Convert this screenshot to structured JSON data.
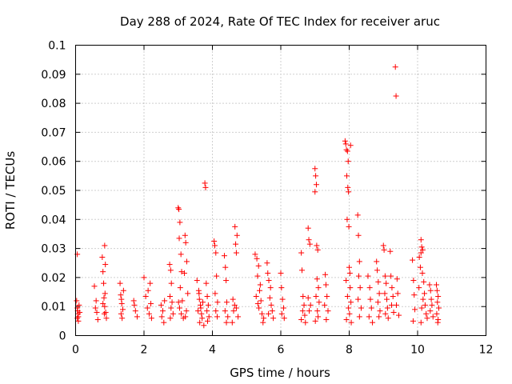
{
  "chart_data": {
    "type": "scatter",
    "title": "Day 288 of 2024, Rate Of TEC Index for receiver aruc",
    "xlabel": "GPS time / hours",
    "ylabel": "ROTI / TECUs",
    "xlim": [
      0,
      12
    ],
    "ylim": [
      0,
      0.1
    ],
    "xticks": [
      0,
      2,
      4,
      6,
      8,
      10,
      12
    ],
    "xtick_labels": [
      "0",
      "2",
      "4",
      "6",
      "8",
      "10",
      "12"
    ],
    "yticks": [
      0,
      0.01,
      0.02,
      0.03,
      0.04,
      0.05,
      0.06,
      0.07,
      0.08,
      0.09,
      0.1
    ],
    "ytick_labels": [
      "0",
      "0.01",
      "0.02",
      "0.03",
      "0.04",
      "0.05",
      "0.06",
      "0.07",
      "0.08",
      "0.09",
      "0.1"
    ],
    "grid": true,
    "marker": "+",
    "color": "#ff0000",
    "series": [
      {
        "name": "ROTI",
        "points": [
          [
            0.05,
            0.028
          ],
          [
            0.05,
            0.0095
          ],
          [
            0.06,
            0.0085
          ],
          [
            0.07,
            0.0075
          ],
          [
            0.05,
            0.006
          ],
          [
            0.08,
            0.005
          ],
          [
            0.1,
            0.0105
          ],
          [
            0.03,
            0.012
          ],
          [
            0.08,
            0.0065
          ],
          [
            0.12,
            0.008
          ],
          [
            0.55,
            0.017
          ],
          [
            0.6,
            0.012
          ],
          [
            0.62,
            0.008
          ],
          [
            0.65,
            0.0055
          ],
          [
            0.58,
            0.0095
          ],
          [
            0.78,
            0.027
          ],
          [
            0.8,
            0.022
          ],
          [
            0.82,
            0.018
          ],
          [
            0.85,
            0.031
          ],
          [
            0.87,
            0.0245
          ],
          [
            0.83,
            0.013
          ],
          [
            0.85,
            0.01
          ],
          [
            0.88,
            0.008
          ],
          [
            0.9,
            0.006
          ],
          [
            0.8,
            0.011
          ],
          [
            0.84,
            0.0075
          ],
          [
            0.86,
            0.0145
          ],
          [
            1.3,
            0.018
          ],
          [
            1.32,
            0.014
          ],
          [
            1.35,
            0.011
          ],
          [
            1.38,
            0.009
          ],
          [
            1.33,
            0.0075
          ],
          [
            1.36,
            0.006
          ],
          [
            1.4,
            0.0155
          ],
          [
            1.34,
            0.0125
          ],
          [
            1.7,
            0.012
          ],
          [
            1.75,
            0.0085
          ],
          [
            1.8,
            0.0065
          ],
          [
            1.72,
            0.0105
          ],
          [
            2.0,
            0.02
          ],
          [
            2.05,
            0.0135
          ],
          [
            2.1,
            0.0095
          ],
          [
            2.15,
            0.0075
          ],
          [
            2.18,
            0.018
          ],
          [
            2.2,
            0.011
          ],
          [
            2.22,
            0.006
          ],
          [
            2.12,
            0.0155
          ],
          [
            2.5,
            0.0105
          ],
          [
            2.55,
            0.0085
          ],
          [
            2.52,
            0.0065
          ],
          [
            2.58,
            0.0045
          ],
          [
            2.6,
            0.012
          ],
          [
            2.75,
            0.0245
          ],
          [
            2.78,
            0.0225
          ],
          [
            2.8,
            0.018
          ],
          [
            2.76,
            0.0135
          ],
          [
            2.82,
            0.0115
          ],
          [
            2.79,
            0.0095
          ],
          [
            2.85,
            0.0075
          ],
          [
            2.77,
            0.006
          ],
          [
            3.0,
            0.044
          ],
          [
            3.02,
            0.0435
          ],
          [
            3.05,
            0.039
          ],
          [
            3.03,
            0.0335
          ],
          [
            3.08,
            0.028
          ],
          [
            3.1,
            0.022
          ],
          [
            3.06,
            0.0165
          ],
          [
            3.12,
            0.012
          ],
          [
            3.04,
            0.0095
          ],
          [
            3.09,
            0.0075
          ],
          [
            3.15,
            0.006
          ],
          [
            3.01,
            0.0115
          ],
          [
            3.2,
            0.0345
          ],
          [
            3.22,
            0.032
          ],
          [
            3.25,
            0.0255
          ],
          [
            3.18,
            0.0215
          ],
          [
            3.28,
            0.0145
          ],
          [
            3.24,
            0.0085
          ],
          [
            3.21,
            0.0065
          ],
          [
            3.55,
            0.019
          ],
          [
            3.6,
            0.0155
          ],
          [
            3.62,
            0.0125
          ],
          [
            3.65,
            0.0105
          ],
          [
            3.58,
            0.0085
          ],
          [
            3.68,
            0.0075
          ],
          [
            3.7,
            0.006
          ],
          [
            3.63,
            0.0045
          ],
          [
            3.75,
            0.0035
          ],
          [
            3.66,
            0.0095
          ],
          [
            3.72,
            0.0115
          ],
          [
            3.61,
            0.0145
          ],
          [
            3.78,
            0.0525
          ],
          [
            3.8,
            0.051
          ],
          [
            3.82,
            0.018
          ],
          [
            3.85,
            0.0135
          ],
          [
            3.88,
            0.0105
          ],
          [
            3.84,
            0.0085
          ],
          [
            3.9,
            0.0065
          ],
          [
            3.86,
            0.005
          ],
          [
            4.05,
            0.0325
          ],
          [
            4.07,
            0.031
          ],
          [
            4.1,
            0.0285
          ],
          [
            4.12,
            0.0205
          ],
          [
            4.08,
            0.0145
          ],
          [
            4.15,
            0.0115
          ],
          [
            4.1,
            0.0085
          ],
          [
            4.14,
            0.0065
          ],
          [
            4.35,
            0.0275
          ],
          [
            4.38,
            0.0235
          ],
          [
            4.4,
            0.019
          ],
          [
            4.42,
            0.0115
          ],
          [
            4.37,
            0.0085
          ],
          [
            4.45,
            0.0065
          ],
          [
            4.41,
            0.0045
          ],
          [
            4.6,
            0.0125
          ],
          [
            4.65,
            0.0105
          ],
          [
            4.7,
            0.0285
          ],
          [
            4.68,
            0.0315
          ],
          [
            4.72,
            0.0345
          ],
          [
            4.66,
            0.0375
          ],
          [
            4.62,
            0.0085
          ],
          [
            4.75,
            0.0065
          ],
          [
            4.58,
            0.0045
          ],
          [
            4.7,
            0.0095
          ],
          [
            5.25,
            0.028
          ],
          [
            5.3,
            0.0265
          ],
          [
            5.35,
            0.024
          ],
          [
            5.32,
            0.0205
          ],
          [
            5.4,
            0.0175
          ],
          [
            5.38,
            0.0155
          ],
          [
            5.28,
            0.0135
          ],
          [
            5.42,
            0.012
          ],
          [
            5.36,
            0.0095
          ],
          [
            5.45,
            0.0075
          ],
          [
            5.5,
            0.006
          ],
          [
            5.48,
            0.0045
          ],
          [
            5.33,
            0.011
          ],
          [
            5.6,
            0.025
          ],
          [
            5.62,
            0.0215
          ],
          [
            5.65,
            0.019
          ],
          [
            5.7,
            0.0165
          ],
          [
            5.68,
            0.013
          ],
          [
            5.72,
            0.0105
          ],
          [
            5.75,
            0.0085
          ],
          [
            5.64,
            0.0075
          ],
          [
            5.78,
            0.006
          ],
          [
            6.0,
            0.0215
          ],
          [
            6.02,
            0.0165
          ],
          [
            6.05,
            0.0125
          ],
          [
            6.08,
            0.0095
          ],
          [
            6.03,
            0.0075
          ],
          [
            6.1,
            0.006
          ],
          [
            6.6,
            0.0285
          ],
          [
            6.62,
            0.0225
          ],
          [
            6.65,
            0.0135
          ],
          [
            6.68,
            0.0105
          ],
          [
            6.64,
            0.0085
          ],
          [
            6.7,
            0.007
          ],
          [
            6.6,
            0.0055
          ],
          [
            6.72,
            0.0045
          ],
          [
            6.8,
            0.037
          ],
          [
            6.82,
            0.033
          ],
          [
            6.85,
            0.0315
          ],
          [
            6.8,
            0.013
          ],
          [
            6.87,
            0.0105
          ],
          [
            6.83,
            0.0085
          ],
          [
            7.0,
            0.0575
          ],
          [
            7.02,
            0.055
          ],
          [
            7.04,
            0.052
          ],
          [
            7.0,
            0.0495
          ],
          [
            7.05,
            0.031
          ],
          [
            7.08,
            0.0295
          ],
          [
            7.06,
            0.0195
          ],
          [
            7.1,
            0.0165
          ],
          [
            7.03,
            0.0135
          ],
          [
            7.12,
            0.0115
          ],
          [
            7.07,
            0.0085
          ],
          [
            7.09,
            0.0065
          ],
          [
            7.01,
            0.005
          ],
          [
            7.3,
            0.021
          ],
          [
            7.32,
            0.0175
          ],
          [
            7.35,
            0.0135
          ],
          [
            7.28,
            0.0105
          ],
          [
            7.38,
            0.0085
          ],
          [
            7.33,
            0.0055
          ],
          [
            7.88,
            0.067
          ],
          [
            7.9,
            0.066
          ],
          [
            7.92,
            0.064
          ],
          [
            7.95,
            0.0635
          ],
          [
            7.97,
            0.06
          ],
          [
            7.93,
            0.055
          ],
          [
            7.96,
            0.051
          ],
          [
            7.98,
            0.0495
          ],
          [
            7.94,
            0.04
          ],
          [
            7.99,
            0.0375
          ],
          [
            8.0,
            0.0235
          ],
          [
            8.02,
            0.0215
          ],
          [
            7.91,
            0.019
          ],
          [
            8.03,
            0.0165
          ],
          [
            7.95,
            0.0135
          ],
          [
            8.05,
            0.0115
          ],
          [
            7.98,
            0.0095
          ],
          [
            8.01,
            0.0075
          ],
          [
            7.92,
            0.0055
          ],
          [
            8.06,
            0.0045
          ],
          [
            8.04,
            0.0655
          ],
          [
            8.25,
            0.0415
          ],
          [
            8.27,
            0.0345
          ],
          [
            8.3,
            0.0255
          ],
          [
            8.28,
            0.0205
          ],
          [
            8.32,
            0.0165
          ],
          [
            8.26,
            0.0125
          ],
          [
            8.35,
            0.0095
          ],
          [
            8.3,
            0.0065
          ],
          [
            8.55,
            0.0205
          ],
          [
            8.6,
            0.0165
          ],
          [
            8.62,
            0.0125
          ],
          [
            8.65,
            0.0095
          ],
          [
            8.58,
            0.0065
          ],
          [
            8.68,
            0.0045
          ],
          [
            8.8,
            0.0255
          ],
          [
            8.82,
            0.0225
          ],
          [
            8.85,
            0.0185
          ],
          [
            8.88,
            0.0145
          ],
          [
            8.84,
            0.0115
          ],
          [
            8.9,
            0.0085
          ],
          [
            8.87,
            0.0065
          ],
          [
            9.0,
            0.031
          ],
          [
            9.02,
            0.0295
          ],
          [
            9.05,
            0.0205
          ],
          [
            9.08,
            0.018
          ],
          [
            9.04,
            0.0145
          ],
          [
            9.1,
            0.0125
          ],
          [
            9.12,
            0.0095
          ],
          [
            9.06,
            0.0075
          ],
          [
            9.14,
            0.006
          ],
          [
            9.2,
            0.029
          ],
          [
            9.22,
            0.0205
          ],
          [
            9.25,
            0.0165
          ],
          [
            9.28,
            0.0135
          ],
          [
            9.24,
            0.0105
          ],
          [
            9.3,
            0.008
          ],
          [
            9.35,
            0.0925
          ],
          [
            9.37,
            0.0825
          ],
          [
            9.4,
            0.0195
          ],
          [
            9.42,
            0.0145
          ],
          [
            9.38,
            0.0105
          ],
          [
            9.45,
            0.007
          ],
          [
            9.85,
            0.026
          ],
          [
            9.88,
            0.019
          ],
          [
            9.9,
            0.014
          ],
          [
            9.92,
            0.009
          ],
          [
            9.87,
            0.005
          ],
          [
            10.1,
            0.033
          ],
          [
            10.12,
            0.0305
          ],
          [
            10.15,
            0.0295
          ],
          [
            10.1,
            0.0285
          ],
          [
            10.05,
            0.027
          ],
          [
            10.08,
            0.0235
          ],
          [
            10.14,
            0.0215
          ],
          [
            10.18,
            0.0185
          ],
          [
            10.04,
            0.0165
          ],
          [
            10.2,
            0.0145
          ],
          [
            10.16,
            0.0125
          ],
          [
            10.22,
            0.0105
          ],
          [
            10.12,
            0.0095
          ],
          [
            10.25,
            0.0075
          ],
          [
            10.28,
            0.006
          ],
          [
            10.1,
            0.0045
          ],
          [
            10.35,
            0.0175
          ],
          [
            10.38,
            0.0155
          ],
          [
            10.4,
            0.0125
          ],
          [
            10.42,
            0.0105
          ],
          [
            10.37,
            0.0085
          ],
          [
            10.45,
            0.0065
          ],
          [
            10.55,
            0.0175
          ],
          [
            10.57,
            0.0155
          ],
          [
            10.6,
            0.0135
          ],
          [
            10.58,
            0.0115
          ],
          [
            10.62,
            0.0095
          ],
          [
            10.56,
            0.0075
          ],
          [
            10.6,
            0.0055
          ],
          [
            10.59,
            0.0045
          ]
        ]
      }
    ]
  }
}
